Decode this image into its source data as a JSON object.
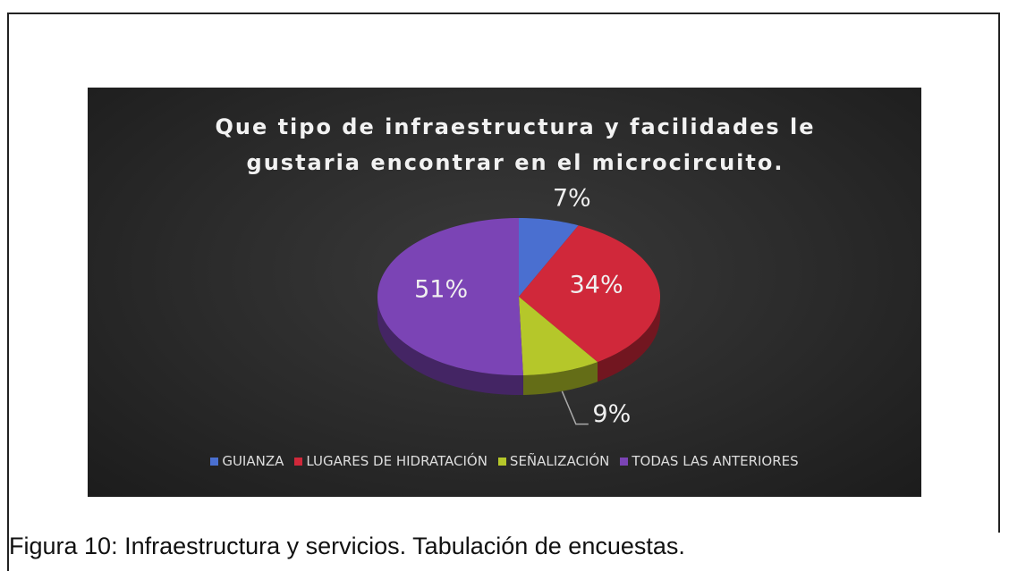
{
  "chart_data": {
    "type": "pie",
    "title": "Que tipo de infraestructura y facilidades le gustaria encontrar en el microcircuito.",
    "categories": [
      "GUIANZA",
      "LUGARES DE HIDRATACIÓN",
      "SEÑALIZACIÓN",
      "TODAS LAS ANTERIORES"
    ],
    "values": [
      7,
      34,
      9,
      51
    ],
    "value_labels": [
      "7%",
      "34%",
      "9%",
      "51%"
    ],
    "colors": [
      "#4a6fd0",
      "#d0283a",
      "#b5c72a",
      "#7b44b5"
    ],
    "legend": "bottom"
  },
  "caption": "Figura 10: Infraestructura y servicios. Tabulación de encuestas."
}
